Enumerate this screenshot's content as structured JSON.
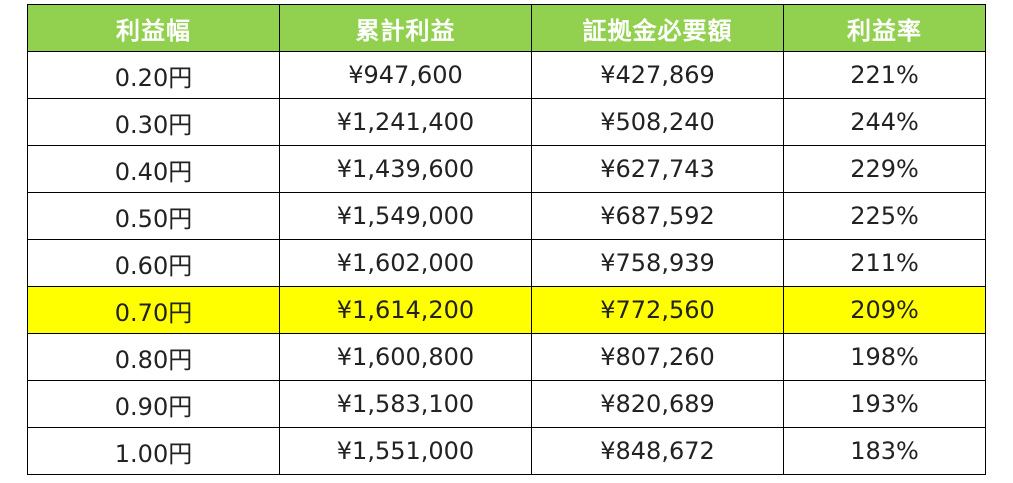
{
  "table": {
    "headers": [
      "利益幅",
      "累計利益",
      "証拠金必要額",
      "利益率"
    ],
    "rows": [
      {
        "width": "0.20円",
        "cumulative_profit": "¥947,600",
        "margin_required": "¥427,869",
        "profit_rate": "221%",
        "highlight": false
      },
      {
        "width": "0.30円",
        "cumulative_profit": "¥1,241,400",
        "margin_required": "¥508,240",
        "profit_rate": "244%",
        "highlight": false
      },
      {
        "width": "0.40円",
        "cumulative_profit": "¥1,439,600",
        "margin_required": "¥627,743",
        "profit_rate": "229%",
        "highlight": false
      },
      {
        "width": "0.50円",
        "cumulative_profit": "¥1,549,000",
        "margin_required": "¥687,592",
        "profit_rate": "225%",
        "highlight": false
      },
      {
        "width": "0.60円",
        "cumulative_profit": "¥1,602,000",
        "margin_required": "¥758,939",
        "profit_rate": "211%",
        "highlight": false
      },
      {
        "width": "0.70円",
        "cumulative_profit": "¥1,614,200",
        "margin_required": "¥772,560",
        "profit_rate": "209%",
        "highlight": true
      },
      {
        "width": "0.80円",
        "cumulative_profit": "¥1,600,800",
        "margin_required": "¥807,260",
        "profit_rate": "198%",
        "highlight": false
      },
      {
        "width": "0.90円",
        "cumulative_profit": "¥1,583,100",
        "margin_required": "¥820,689",
        "profit_rate": "193%",
        "highlight": false
      },
      {
        "width": "1.00円",
        "cumulative_profit": "¥1,551,000",
        "margin_required": "¥848,672",
        "profit_rate": "183%",
        "highlight": false
      }
    ]
  },
  "colors": {
    "header_bg": "#92d050",
    "header_text": "#ffffff",
    "highlight_bg": "#ffff00",
    "border": "#000000"
  }
}
